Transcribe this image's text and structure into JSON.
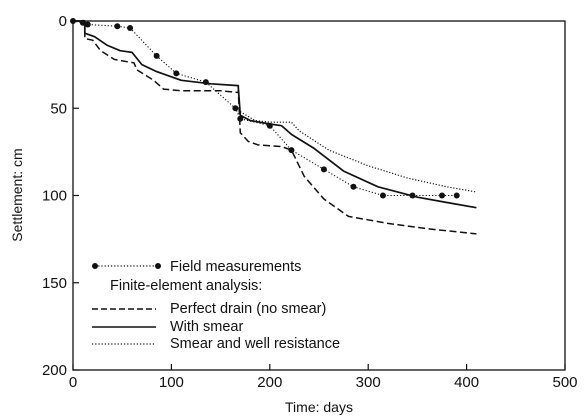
{
  "chart_data": {
    "type": "line",
    "xlabel": "Time: days",
    "ylabel": "Settlement: cm",
    "xlim": [
      0,
      500
    ],
    "ylim": [
      0,
      200
    ],
    "y_inverted": true,
    "grid": false,
    "legend_position": "bottom-left",
    "x_ticks": [
      "0",
      "100",
      "200",
      "300",
      "400",
      "500"
    ],
    "y_ticks": [
      "0",
      "50",
      "100",
      "150",
      "200"
    ],
    "legend_subtitle": "Finite-element analysis:",
    "series": [
      {
        "name": "Field measurements",
        "style": "dotted-markers",
        "color": "#111111",
        "points": [
          [
            0,
            0
          ],
          [
            10,
            1
          ],
          [
            15,
            2
          ],
          [
            45,
            3
          ],
          [
            58,
            4
          ],
          [
            85,
            20
          ],
          [
            105,
            30
          ],
          [
            135,
            35
          ],
          [
            165,
            50
          ],
          [
            170,
            56
          ],
          [
            200,
            60
          ],
          [
            222,
            74
          ],
          [
            255,
            85
          ],
          [
            285,
            95
          ],
          [
            315,
            100
          ],
          [
            345,
            100
          ],
          [
            375,
            100
          ],
          [
            390,
            100
          ]
        ]
      },
      {
        "name": "Perfect drain (no smear)",
        "style": "dashed",
        "color": "#111111",
        "points": [
          [
            0,
            0
          ],
          [
            12,
            0
          ],
          [
            12,
            10
          ],
          [
            20,
            11
          ],
          [
            28,
            17
          ],
          [
            42,
            22
          ],
          [
            62,
            24
          ],
          [
            65,
            28
          ],
          [
            82,
            34
          ],
          [
            92,
            39
          ],
          [
            110,
            40
          ],
          [
            150,
            40
          ],
          [
            168,
            41
          ],
          [
            168,
            40
          ],
          [
            170,
            64
          ],
          [
            178,
            69
          ],
          [
            188,
            71
          ],
          [
            212,
            72
          ],
          [
            222,
            74
          ],
          [
            235,
            89
          ],
          [
            255,
            102
          ],
          [
            280,
            112
          ],
          [
            320,
            116
          ],
          [
            360,
            119
          ],
          [
            410,
            122
          ]
        ]
      },
      {
        "name": "With smear",
        "style": "solid",
        "color": "#111111",
        "points": [
          [
            0,
            0
          ],
          [
            12,
            0
          ],
          [
            12,
            7
          ],
          [
            22,
            9
          ],
          [
            35,
            14
          ],
          [
            48,
            17
          ],
          [
            60,
            18
          ],
          [
            70,
            25
          ],
          [
            85,
            29
          ],
          [
            110,
            34
          ],
          [
            140,
            36
          ],
          [
            168,
            37
          ],
          [
            168,
            38
          ],
          [
            170,
            54
          ],
          [
            180,
            57
          ],
          [
            200,
            59
          ],
          [
            212,
            60
          ],
          [
            222,
            65
          ],
          [
            245,
            73
          ],
          [
            275,
            86
          ],
          [
            310,
            95
          ],
          [
            350,
            101
          ],
          [
            380,
            104
          ],
          [
            410,
            107
          ]
        ]
      },
      {
        "name": "Smear and well resistance",
        "style": "dotted",
        "color": "#111111",
        "points": [
          [
            170,
            52
          ],
          [
            185,
            57
          ],
          [
            200,
            58
          ],
          [
            222,
            58
          ],
          [
            230,
            63
          ],
          [
            260,
            74
          ],
          [
            300,
            83
          ],
          [
            340,
            90
          ],
          [
            380,
            95
          ],
          [
            410,
            98
          ]
        ]
      }
    ]
  }
}
